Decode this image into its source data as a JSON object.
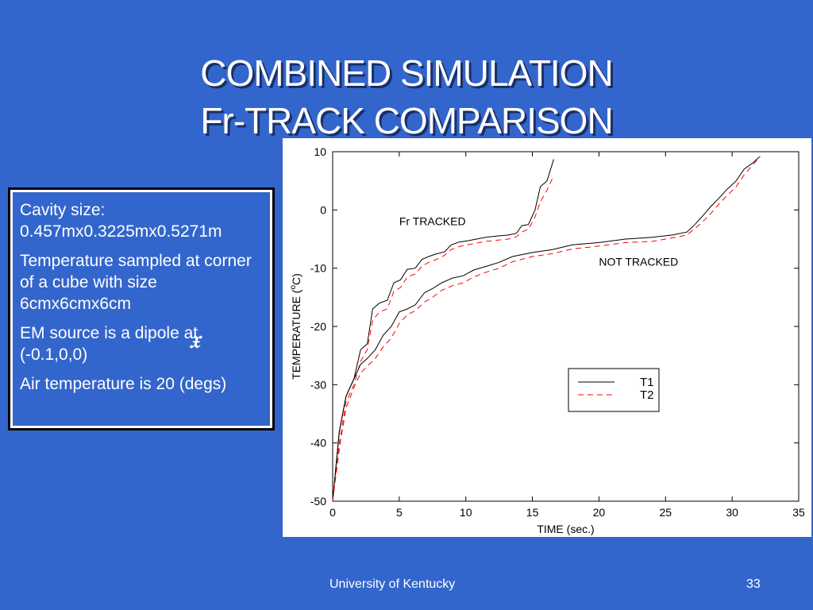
{
  "slide": {
    "title_line1": "COMBINED SIMULATION",
    "title_line2": "Fr-TRACK COMPARISON",
    "bullets": [
      "Cavity size: 0.457mx0.3225mx0.5271m",
      "Temperature sampled at corner of a cube with size 6cmx6cmx6cm",
      "EM source is a dipole at (-0.1,0,0)",
      "Air temperature is 20 (degs)"
    ],
    "footer_left": "University of Kentucky",
    "footer_right": "33"
  },
  "colors": {
    "background": "#3366cc",
    "t1": "#000000",
    "t2": "#ff0000"
  },
  "chart_data": {
    "type": "line",
    "xlabel": "TIME (sec.)",
    "ylabel_prefix": "TEMPERATURE (",
    "ylabel_sup": "o",
    "ylabel_suffix": "C)",
    "xlim": [
      0,
      35
    ],
    "ylim": [
      -50,
      10
    ],
    "xticks": [
      0,
      5,
      10,
      15,
      20,
      25,
      30,
      35
    ],
    "yticks": [
      10,
      0,
      -10,
      -20,
      -30,
      -40,
      -50
    ],
    "grid": false,
    "legend": {
      "placement": "center-right",
      "entries": [
        "T1",
        "T2"
      ]
    },
    "annotations": [
      {
        "text": "Fr TRACKED",
        "x": 5,
        "y": -2.6
      },
      {
        "text": "NOT TRACKED",
        "x": 20,
        "y": -9.6
      }
    ],
    "series": [
      {
        "name": "T1",
        "group": "Fr TRACKED",
        "style": "solid",
        "x": [
          0,
          0.5,
          1,
          1.6,
          2.1,
          2.6,
          3,
          3.5,
          4.1,
          4.6,
          5.1,
          5.6,
          6.2,
          6.7,
          7.2,
          7.7,
          8.4,
          8.9,
          9.5,
          10.1,
          10.8,
          11.5,
          12.3,
          13.2,
          13.8,
          14.2,
          14.7,
          15.2,
          15.6,
          16.1,
          16.6
        ],
        "y": [
          -50,
          -38,
          -32,
          -29,
          -24,
          -23,
          -17,
          -16,
          -15.5,
          -12.5,
          -12,
          -10.2,
          -10,
          -8.5,
          -8,
          -7.6,
          -7.2,
          -6,
          -5.5,
          -5.3,
          -5,
          -4.7,
          -4.5,
          -4.3,
          -4,
          -2.7,
          -2.5,
          0,
          4,
          5,
          8.7
        ]
      },
      {
        "name": "T2",
        "group": "Fr TRACKED",
        "style": "dashed",
        "x": [
          0,
          0.5,
          1,
          1.6,
          2.1,
          2.6,
          3,
          3.5,
          4.1,
          4.6,
          5.1,
          5.6,
          6.2,
          6.7,
          7.2,
          7.7,
          8.4,
          8.9,
          9.5,
          10.1,
          10.8,
          11.5,
          12.3,
          13.2,
          13.8,
          14.2,
          14.7,
          15.2,
          15.6,
          16.1,
          16.6
        ],
        "y": [
          -50,
          -40,
          -33,
          -30,
          -26,
          -24,
          -19,
          -17.5,
          -17,
          -14,
          -13.3,
          -11.5,
          -11,
          -9.7,
          -9,
          -8.6,
          -7.8,
          -6.8,
          -6.3,
          -6,
          -5.7,
          -5.4,
          -5.2,
          -5,
          -4.6,
          -3.8,
          -3.3,
          -1.2,
          1.4,
          3.4,
          5.9
        ]
      },
      {
        "name": "T1",
        "group": "NOT TRACKED",
        "style": "solid",
        "x": [
          0,
          0.5,
          1,
          1.6,
          2.1,
          2.6,
          3.2,
          3.8,
          4.4,
          5,
          5.6,
          6.2,
          6.9,
          7.5,
          8.2,
          9,
          9.8,
          10.6,
          11.5,
          12.5,
          13.5,
          15,
          16.5,
          18,
          20,
          22,
          24,
          25.5,
          26.6,
          27.2,
          27.8,
          28.4,
          29,
          29.6,
          30.3,
          30.9,
          31.5,
          32.1
        ],
        "y": [
          -50,
          -38,
          -32,
          -29,
          -26.5,
          -25.5,
          -24,
          -21.5,
          -20,
          -17.5,
          -17,
          -16.3,
          -14.2,
          -13.5,
          -12.5,
          -11.7,
          -11.3,
          -10.3,
          -9.7,
          -9,
          -8,
          -7.3,
          -6.8,
          -6,
          -5.6,
          -5,
          -4.7,
          -4.3,
          -3.8,
          -2.5,
          -1,
          0.6,
          2,
          3.5,
          5,
          7,
          8,
          9.2
        ]
      },
      {
        "name": "T2",
        "group": "NOT TRACKED",
        "style": "dashed",
        "x": [
          0,
          0.5,
          1,
          1.6,
          2.1,
          2.6,
          3.2,
          3.8,
          4.4,
          5,
          5.6,
          6.2,
          6.9,
          7.5,
          8.2,
          9,
          9.8,
          10.6,
          11.5,
          12.5,
          13.5,
          15,
          16.5,
          18,
          20,
          22,
          24,
          25.5,
          26.6,
          27.2,
          27.8,
          28.4,
          29,
          29.6,
          30.3,
          30.9,
          31.5,
          32.1
        ],
        "y": [
          -50,
          -41,
          -34,
          -30.5,
          -28,
          -26.8,
          -25.5,
          -23.5,
          -22,
          -19.5,
          -18,
          -17.3,
          -15.8,
          -15,
          -13.8,
          -13,
          -12.5,
          -11.5,
          -10.7,
          -10,
          -8.9,
          -8,
          -7.5,
          -6.7,
          -6.2,
          -5.6,
          -5.4,
          -4.8,
          -4.3,
          -3.2,
          -2,
          -0.6,
          1,
          2.4,
          4,
          6,
          7.6,
          9.2
        ]
      }
    ]
  }
}
